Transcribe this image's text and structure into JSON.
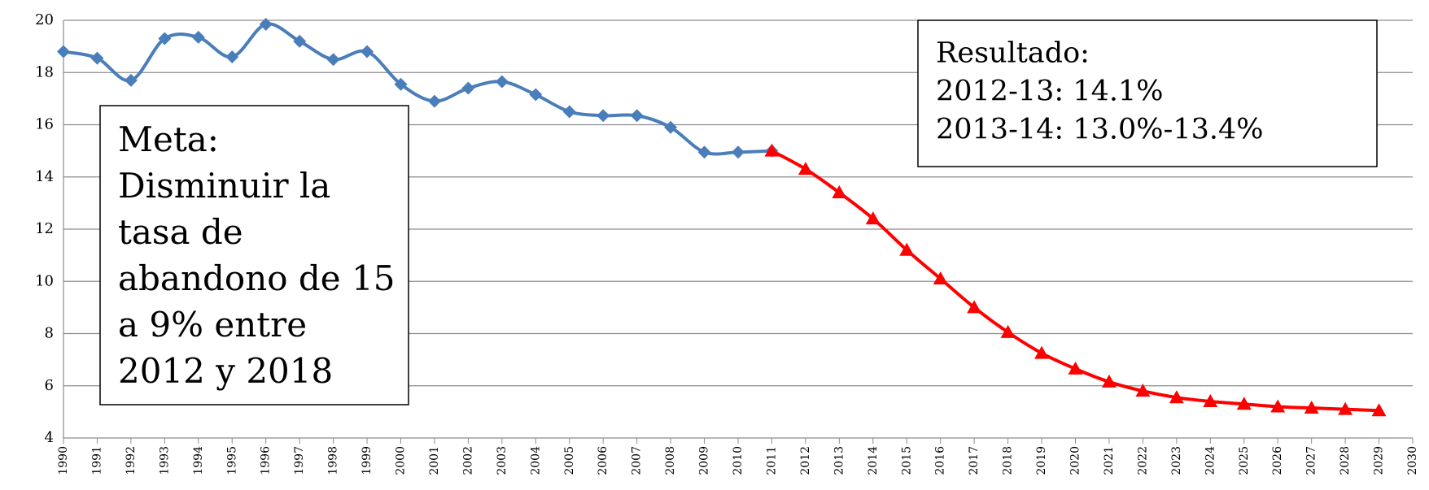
{
  "chart_data": {
    "type": "line",
    "categories": [
      "1990",
      "1991",
      "1992",
      "1993",
      "1994",
      "1995",
      "1996",
      "1997",
      "1998",
      "1999",
      "2000",
      "2001",
      "2002",
      "2003",
      "2004",
      "2005",
      "2006",
      "2007",
      "2008",
      "2009",
      "2010",
      "2011",
      "2012",
      "2013",
      "2014",
      "2015",
      "2016",
      "2017",
      "2018",
      "2019",
      "2020",
      "2021",
      "2022",
      "2023",
      "2024",
      "2025",
      "2026",
      "2027",
      "2028",
      "2029",
      "2030"
    ],
    "series": [
      {
        "color": "#4a7ebb",
        "marker": "diamond",
        "values": [
          18.8,
          18.55,
          17.7,
          19.3,
          19.35,
          18.6,
          19.85,
          19.2,
          18.5,
          18.8,
          17.55,
          16.9,
          17.4,
          17.65,
          17.15,
          16.5,
          16.35,
          16.35,
          15.9,
          14.95,
          14.95,
          15.0,
          null,
          null,
          null,
          null,
          null,
          null,
          null,
          null,
          null,
          null,
          null,
          null,
          null,
          null,
          null,
          null,
          null,
          null,
          null
        ]
      },
      {
        "color": "#ff0000",
        "marker": "triangle",
        "values": [
          null,
          null,
          null,
          null,
          null,
          null,
          null,
          null,
          null,
          null,
          null,
          null,
          null,
          null,
          null,
          null,
          null,
          null,
          null,
          null,
          null,
          15.0,
          14.3,
          13.4,
          12.4,
          11.2,
          10.1,
          9.0,
          8.05,
          7.25,
          6.65,
          6.15,
          5.8,
          5.55,
          5.4,
          5.3,
          5.2,
          5.15,
          5.1,
          5.05,
          null
        ]
      }
    ],
    "ylim": [
      4,
      20
    ],
    "yticks": [
      4,
      6,
      8,
      10,
      12,
      14,
      16,
      18,
      20
    ],
    "grid": true,
    "annotations": [
      {
        "lines": [
          "Meta:",
          "Disminuir la",
          "tasa de",
          "abandono de 15",
          "a 9% entre",
          "2012 y 2018"
        ]
      },
      {
        "lines": [
          "Resultado:",
          "2012-13: 14.1%",
          "2013-14: 13.0%-13.4%"
        ]
      }
    ]
  }
}
